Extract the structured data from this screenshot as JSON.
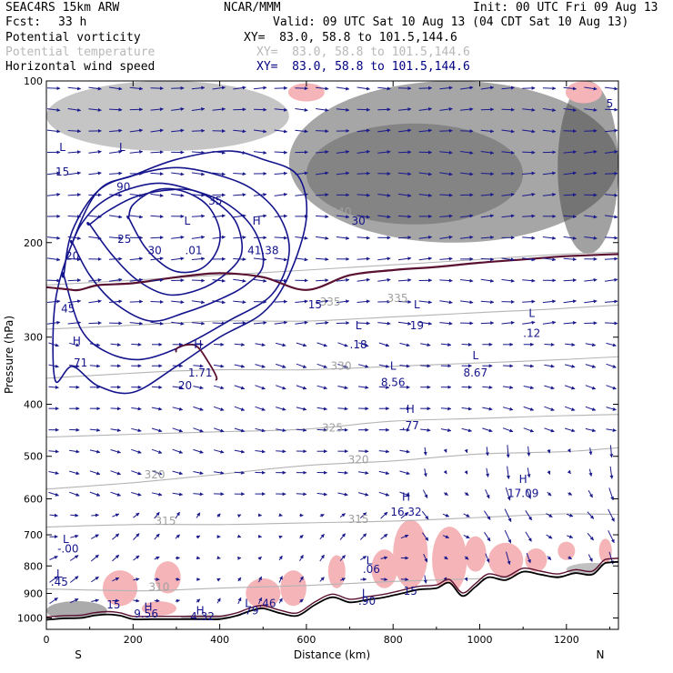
{
  "header": {
    "model": "SEAC4RS 15km ARW",
    "center": "NCAR/MMM",
    "init": "Init: 00 UTC Fri 09 Aug 13",
    "fcst_label": "Fcst:",
    "fcst_value": "33 h",
    "valid": "Valid: 09 UTC Sat 10 Aug 13 (04 CDT Sat 10 Aug 13)"
  },
  "legend": [
    {
      "name": "Potential vorticity",
      "xy": "XY=  83.0, 58.8 to 101.5,144.6",
      "color": "#000000",
      "xycolor": "#000000"
    },
    {
      "name": "Potential temperature",
      "xy": "XY=  83.0, 58.8 to 101.5,144.6",
      "color": "#b8b8b8",
      "xycolor": "#b8b8b8"
    },
    {
      "name": "Horizontal wind speed",
      "xy": "XY=  83.0, 58.8 to 101.5,144.6",
      "color": "#000000",
      "xycolor": "#000080"
    }
  ],
  "chart_data": {
    "type": "cross-section",
    "xlabel": "Distance (km)",
    "ylabel": "Pressure (hPa)",
    "xlim": [
      0,
      1320
    ],
    "ylim": [
      1050,
      100
    ],
    "y_scale": "log",
    "x_ticks": [
      0,
      200,
      400,
      600,
      800,
      1000,
      1200
    ],
    "x_tick_labels": [
      "0",
      "200",
      "400",
      "600",
      "800",
      "1000",
      "1200"
    ],
    "y_ticks": [
      100,
      200,
      300,
      400,
      500,
      600,
      700,
      800,
      900,
      1000
    ],
    "y_tick_labels": [
      "100",
      "200",
      "300",
      "400",
      "500",
      "600",
      "700",
      "800",
      "900",
      "1000"
    ],
    "end_labels": {
      "left": "S",
      "right": "N"
    },
    "colors": {
      "wind": "#1a1a8c",
      "theta": "#b4b4b4",
      "speed_contour": "#14148c",
      "pv_positive": "#f4b4b8",
      "terrain": "#000000",
      "tropopause": "#5a1030"
    },
    "terrain_surface": {
      "x": [
        0,
        40,
        80,
        110,
        140,
        170,
        200,
        240,
        280,
        320,
        360,
        400,
        440,
        470,
        500,
        540,
        580,
        620,
        660,
        700,
        740,
        780,
        820,
        860,
        900,
        930,
        960,
        990,
        1020,
        1060,
        1100,
        1140,
        1180,
        1220,
        1260,
        1290,
        1320
      ],
      "p": [
        1005,
        1002,
        1000,
        990,
        985,
        990,
        1005,
        1005,
        1005,
        1005,
        1005,
        1005,
        990,
        970,
        960,
        980,
        990,
        945,
        915,
        935,
        925,
        915,
        900,
        885,
        880,
        860,
        910,
        875,
        840,
        850,
        820,
        830,
        840,
        825,
        830,
        790,
        800
      ]
    },
    "theta_contours": [
      {
        "label": "310",
        "x": [
          0,
          200,
          400,
          600,
          800,
          1000,
          1200,
          1320
        ],
        "p": [
          870,
          890,
          880,
          870,
          855,
          845,
          835,
          830
        ]
      },
      {
        "label": "315",
        "x": [
          0,
          200,
          400,
          600,
          800,
          1000,
          1200,
          1320
        ],
        "p": [
          680,
          670,
          670,
          665,
          660,
          650,
          640,
          650
        ]
      },
      {
        "label": "320",
        "x": [
          0,
          200,
          400,
          600,
          800,
          1000,
          1200,
          1320
        ],
        "p": [
          575,
          560,
          540,
          520,
          510,
          495,
          490,
          480
        ]
      },
      {
        "label": "325",
        "x": [
          0,
          200,
          400,
          600,
          800,
          1000,
          1200,
          1320
        ],
        "p": [
          460,
          455,
          450,
          445,
          430,
          425,
          420,
          420
        ]
      },
      {
        "label": "330",
        "x": [
          0,
          200,
          400,
          600,
          800,
          1000,
          1200,
          1320
        ],
        "p": [
          360,
          350,
          345,
          345,
          340,
          335,
          330,
          325
        ]
      },
      {
        "label": "335",
        "x": [
          0,
          200,
          400,
          600,
          800,
          1000,
          1200,
          1320
        ],
        "p": [
          290,
          285,
          280,
          280,
          275,
          270,
          265,
          260
        ]
      },
      {
        "label": "340",
        "x": [
          0,
          200,
          400,
          600,
          800,
          1000,
          1200,
          1320
        ],
        "p": [
          240,
          235,
          230,
          225,
          220,
          215,
          210,
          210
        ]
      }
    ],
    "wind_speed_contours": [
      {
        "label": "15",
        "x": [
          20,
          60,
          120,
          200,
          300,
          400,
          500,
          560,
          600,
          580,
          500,
          420,
          300,
          200,
          120,
          60,
          20
        ],
        "p": [
          360,
          340,
          370,
          380,
          340,
          300,
          270,
          230,
          180,
          150,
          140,
          135,
          140,
          150,
          160,
          200,
          260
        ]
      },
      {
        "label": "20",
        "x": [
          40,
          80,
          140,
          220,
          320,
          420,
          520,
          560,
          540,
          480,
          400,
          300,
          200,
          120,
          60,
          40
        ],
        "p": [
          230,
          290,
          320,
          330,
          310,
          280,
          250,
          210,
          180,
          160,
          150,
          145,
          150,
          160,
          190,
          230
        ]
      },
      {
        "label": "25",
        "x": [
          60,
          100,
          160,
          240,
          320,
          400,
          460,
          500,
          480,
          420,
          340,
          260,
          180,
          120,
          80,
          60
        ],
        "p": [
          200,
          230,
          260,
          280,
          270,
          255,
          240,
          220,
          190,
          170,
          160,
          155,
          160,
          170,
          185,
          200
        ]
      },
      {
        "label": "30",
        "x": [
          100,
          150,
          210,
          280,
          350,
          410,
          450,
          440,
          400,
          340,
          270,
          200,
          140,
          100
        ],
        "p": [
          185,
          210,
          235,
          250,
          245,
          230,
          210,
          185,
          170,
          160,
          160,
          165,
          175,
          185
        ]
      },
      {
        "label": "35",
        "x": [
          190,
          230,
          290,
          350,
          390,
          400,
          370,
          310,
          250,
          200,
          190
        ],
        "p": [
          180,
          205,
          225,
          225,
          210,
          190,
          170,
          160,
          160,
          170,
          180
        ]
      }
    ],
    "annotations": [
      {
        "text": "L",
        "x": 37,
        "p": 135,
        "color": "#14148c"
      },
      {
        "text": "15",
        "x": 37,
        "p": 150,
        "color": "#14148c"
      },
      {
        "text": "L",
        "x": 175,
        "p": 135,
        "color": "#14148c"
      },
      {
        "text": "90",
        "x": 178,
        "p": 160,
        "color": "#14148c"
      },
      {
        "text": "25",
        "x": 180,
        "p": 200,
        "color": "#14148c"
      },
      {
        "text": "20",
        "x": 60,
        "p": 215,
        "color": "#14148c"
      },
      {
        "text": "30",
        "x": 250,
        "p": 210,
        "color": "#14148c"
      },
      {
        "text": "35",
        "x": 390,
        "p": 170,
        "color": "#14148c"
      },
      {
        "text": "L",
        "x": 325,
        "p": 185,
        "color": "#14148c"
      },
      {
        "text": ".01",
        "x": 340,
        "p": 210,
        "color": "#14148c"
      },
      {
        "text": "H",
        "x": 485,
        "p": 185,
        "color": "#14148c"
      },
      {
        "text": "41.38",
        "x": 500,
        "p": 210,
        "color": "#14148c"
      },
      {
        "text": "45",
        "x": 50,
        "p": 270,
        "color": "#14148c"
      },
      {
        "text": "H",
        "x": 70,
        "p": 310,
        "color": "#14148c"
      },
      {
        "text": ".71",
        "x": 75,
        "p": 340,
        "color": "#14148c"
      },
      {
        "text": "H",
        "x": 350,
        "p": 315,
        "color": "#14148c"
      },
      {
        "text": "1.71",
        "x": 355,
        "p": 355,
        "color": "#14148c"
      },
      {
        "text": "20",
        "x": 320,
        "p": 375,
        "color": "#14148c"
      },
      {
        "text": "15",
        "x": 620,
        "p": 265,
        "color": "#14148c"
      },
      {
        "text": "30",
        "x": 720,
        "p": 185,
        "color": "#14148c"
      },
      {
        "text": "L",
        "x": 720,
        "p": 290,
        "color": "#14148c"
      },
      {
        "text": ".18",
        "x": 720,
        "p": 315,
        "color": "#14148c"
      },
      {
        "text": "L",
        "x": 855,
        "p": 265,
        "color": "#14148c"
      },
      {
        "text": "19",
        "x": 855,
        "p": 290,
        "color": "#14148c"
      },
      {
        "text": "L",
        "x": 1120,
        "p": 275,
        "color": "#14148c"
      },
      {
        "text": ".12",
        "x": 1120,
        "p": 300,
        "color": "#14148c"
      },
      {
        "text": "L",
        "x": 800,
        "p": 345,
        "color": "#14148c"
      },
      {
        "text": "8.56",
        "x": 800,
        "p": 370,
        "color": "#14148c"
      },
      {
        "text": "L",
        "x": 990,
        "p": 330,
        "color": "#14148c"
      },
      {
        "text": "8.67",
        "x": 990,
        "p": 355,
        "color": "#14148c"
      },
      {
        "text": "H",
        "x": 840,
        "p": 415,
        "color": "#14148c"
      },
      {
        "text": ".77",
        "x": 840,
        "p": 445,
        "color": "#14148c"
      },
      {
        "text": "H",
        "x": 830,
        "p": 605,
        "color": "#14148c"
      },
      {
        "text": "16.32",
        "x": 830,
        "p": 645,
        "color": "#14148c"
      },
      {
        "text": "H",
        "x": 1100,
        "p": 560,
        "color": "#14148c"
      },
      {
        "text": "17.09",
        "x": 1100,
        "p": 595,
        "color": "#14148c"
      },
      {
        "text": "L",
        "x": 45,
        "p": 725,
        "color": "#14148c"
      },
      {
        "text": "-.00",
        "x": 50,
        "p": 755,
        "color": "#14148c"
      },
      {
        "text": "L",
        "x": 745,
        "p": 795,
        "color": "#14148c"
      },
      {
        "text": ".06",
        "x": 750,
        "p": 825,
        "color": "#14148c"
      },
      {
        "text": "L",
        "x": 30,
        "p": 840,
        "color": "#14148c"
      },
      {
        "text": ".45",
        "x": 30,
        "p": 870,
        "color": "#14148c"
      },
      {
        "text": "L",
        "x": 735,
        "p": 915,
        "color": "#14148c"
      },
      {
        "text": ".90",
        "x": 740,
        "p": 945,
        "color": "#14148c"
      },
      {
        "text": "15",
        "x": 840,
        "p": 905,
        "color": "#14148c"
      },
      {
        "text": "15",
        "x": 155,
        "p": 960,
        "color": "#14148c"
      },
      {
        "text": "H",
        "x": 235,
        "p": 970,
        "color": "#14148c"
      },
      {
        "text": "9.56",
        "x": 230,
        "p": 998,
        "color": "#14148c"
      },
      {
        "text": "H",
        "x": 355,
        "p": 985,
        "color": "#14148c"
      },
      {
        "text": "4.32",
        "x": 360,
        "p": 1010,
        "color": "#14148c"
      },
      {
        "text": "L",
        "x": 465,
        "p": 955,
        "color": "#14148c"
      },
      {
        "text": ".79",
        "x": 470,
        "p": 985,
        "color": "#14148c"
      },
      {
        "text": ".46",
        "x": 510,
        "p": 955,
        "color": "#14148c"
      },
      {
        "text": "340",
        "x": 680,
        "p": 178,
        "color": "#a0a0a0"
      },
      {
        "text": "335",
        "x": 655,
        "p": 262,
        "color": "#a0a0a0"
      },
      {
        "text": "335",
        "x": 810,
        "p": 258,
        "color": "#a0a0a0"
      },
      {
        "text": "330",
        "x": 680,
        "p": 345,
        "color": "#a0a0a0"
      },
      {
        "text": "325",
        "x": 660,
        "p": 450,
        "color": "#a0a0a0"
      },
      {
        "text": "320",
        "x": 250,
        "p": 550,
        "color": "#a0a0a0"
      },
      {
        "text": "320",
        "x": 720,
        "p": 515,
        "color": "#a0a0a0"
      },
      {
        "text": "315",
        "x": 275,
        "p": 670,
        "color": "#a0a0a0"
      },
      {
        "text": "315",
        "x": 720,
        "p": 665,
        "color": "#a0a0a0"
      },
      {
        "text": "310",
        "x": 260,
        "p": 890,
        "color": "#a0a0a0"
      },
      {
        "text": "5",
        "x": 1300,
        "p": 112,
        "color": "#14148c"
      }
    ]
  }
}
